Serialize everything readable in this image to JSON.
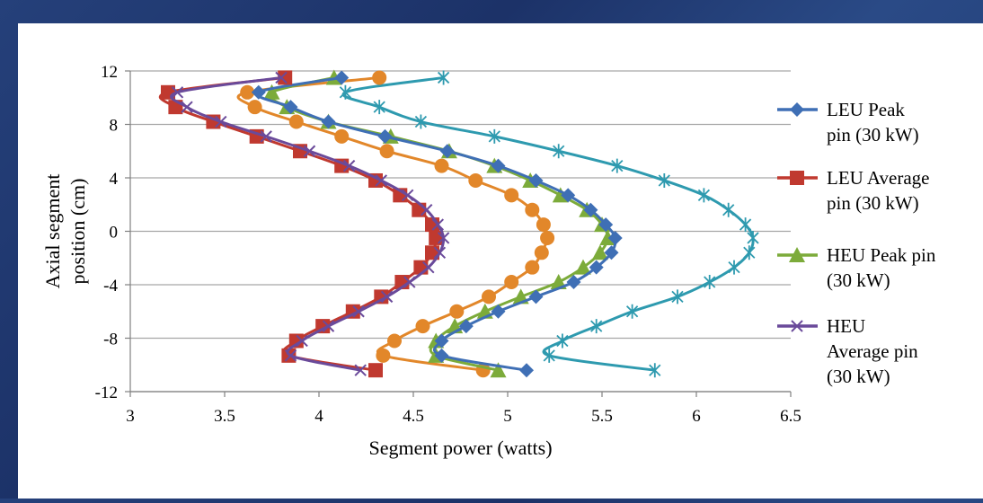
{
  "chart_data": {
    "type": "scatter",
    "title": "",
    "xlabel": "Segment power (watts)",
    "ylabel": "Axial segment position (cm)",
    "xlim": [
      3,
      6.5
    ],
    "ylim": [
      -12,
      12
    ],
    "x_ticks": [
      "3",
      "3.5",
      "4",
      "4.5",
      "5",
      "5.5",
      "6",
      "6.5"
    ],
    "y_ticks": [
      "12",
      "8",
      "4",
      "0",
      "-4",
      "-8",
      "-12"
    ],
    "grid": "horizontal",
    "legend_position": "right",
    "y": [
      11.5,
      10.4,
      9.3,
      8.2,
      7.1,
      6.0,
      4.9,
      3.8,
      2.7,
      1.6,
      0.5,
      -0.5,
      -1.6,
      -2.7,
      -3.8,
      -4.9,
      -6.0,
      -7.1,
      -8.2,
      -9.3,
      -10.4
    ],
    "series": [
      {
        "name": "LEU Peak pin (30 kW)",
        "name_lines": [
          "LEU Peak",
          "pin (30 kW)"
        ],
        "color": "#3f6fb5",
        "marker": "diamond",
        "x": [
          4.12,
          3.68,
          3.85,
          4.05,
          4.35,
          4.68,
          4.95,
          5.15,
          5.32,
          5.44,
          5.52,
          5.57,
          5.55,
          5.47,
          5.35,
          5.15,
          4.95,
          4.78,
          4.65,
          4.65,
          5.1
        ]
      },
      {
        "name": "LEU Average pin (30 kW)",
        "name_lines": [
          "LEU Average",
          "pin (30 kW)"
        ],
        "color": "#c0392f",
        "marker": "square",
        "x": [
          3.82,
          3.2,
          3.24,
          3.44,
          3.67,
          3.9,
          4.12,
          4.3,
          4.43,
          4.53,
          4.6,
          4.62,
          4.6,
          4.54,
          4.44,
          4.33,
          4.18,
          4.02,
          3.88,
          3.84,
          4.3
        ]
      },
      {
        "name": "HEU Peak pin (30 kW)",
        "name_lines": [
          "HEU Peak pin",
          "(30 kW)"
        ],
        "color": "#7cab3a",
        "marker": "triangle",
        "x": [
          4.08,
          3.75,
          3.83,
          4.05,
          4.38,
          4.69,
          4.93,
          5.12,
          5.28,
          5.42,
          5.5,
          5.53,
          5.49,
          5.4,
          5.27,
          5.07,
          4.88,
          4.72,
          4.62,
          4.62,
          4.95
        ]
      },
      {
        "name": "HEU Average pin (30 kW)",
        "name_lines": [
          "HEU",
          "Average pin",
          "(30 kW)"
        ],
        "color": "#6a4a9a",
        "marker": "x",
        "x": [
          3.8,
          3.25,
          3.3,
          3.48,
          3.72,
          3.95,
          4.16,
          4.33,
          4.47,
          4.57,
          4.63,
          4.66,
          4.64,
          4.58,
          4.48,
          4.36,
          4.21,
          4.05,
          3.91,
          3.85,
          4.22
        ]
      },
      {
        "name": "",
        "color": "#2e9aaf",
        "marker": "star",
        "x": [
          4.66,
          4.14,
          4.32,
          4.54,
          4.93,
          5.27,
          5.58,
          5.83,
          6.04,
          6.17,
          6.26,
          6.3,
          6.28,
          6.2,
          6.07,
          5.9,
          5.66,
          5.47,
          5.29,
          5.22,
          5.78
        ]
      },
      {
        "name": "",
        "color": "#e2872a",
        "marker": "circle",
        "x": [
          4.32,
          3.62,
          3.66,
          3.88,
          4.12,
          4.36,
          4.65,
          4.83,
          5.02,
          5.13,
          5.19,
          5.21,
          5.18,
          5.13,
          5.02,
          4.9,
          4.73,
          4.55,
          4.4,
          4.34,
          4.87
        ]
      }
    ]
  }
}
